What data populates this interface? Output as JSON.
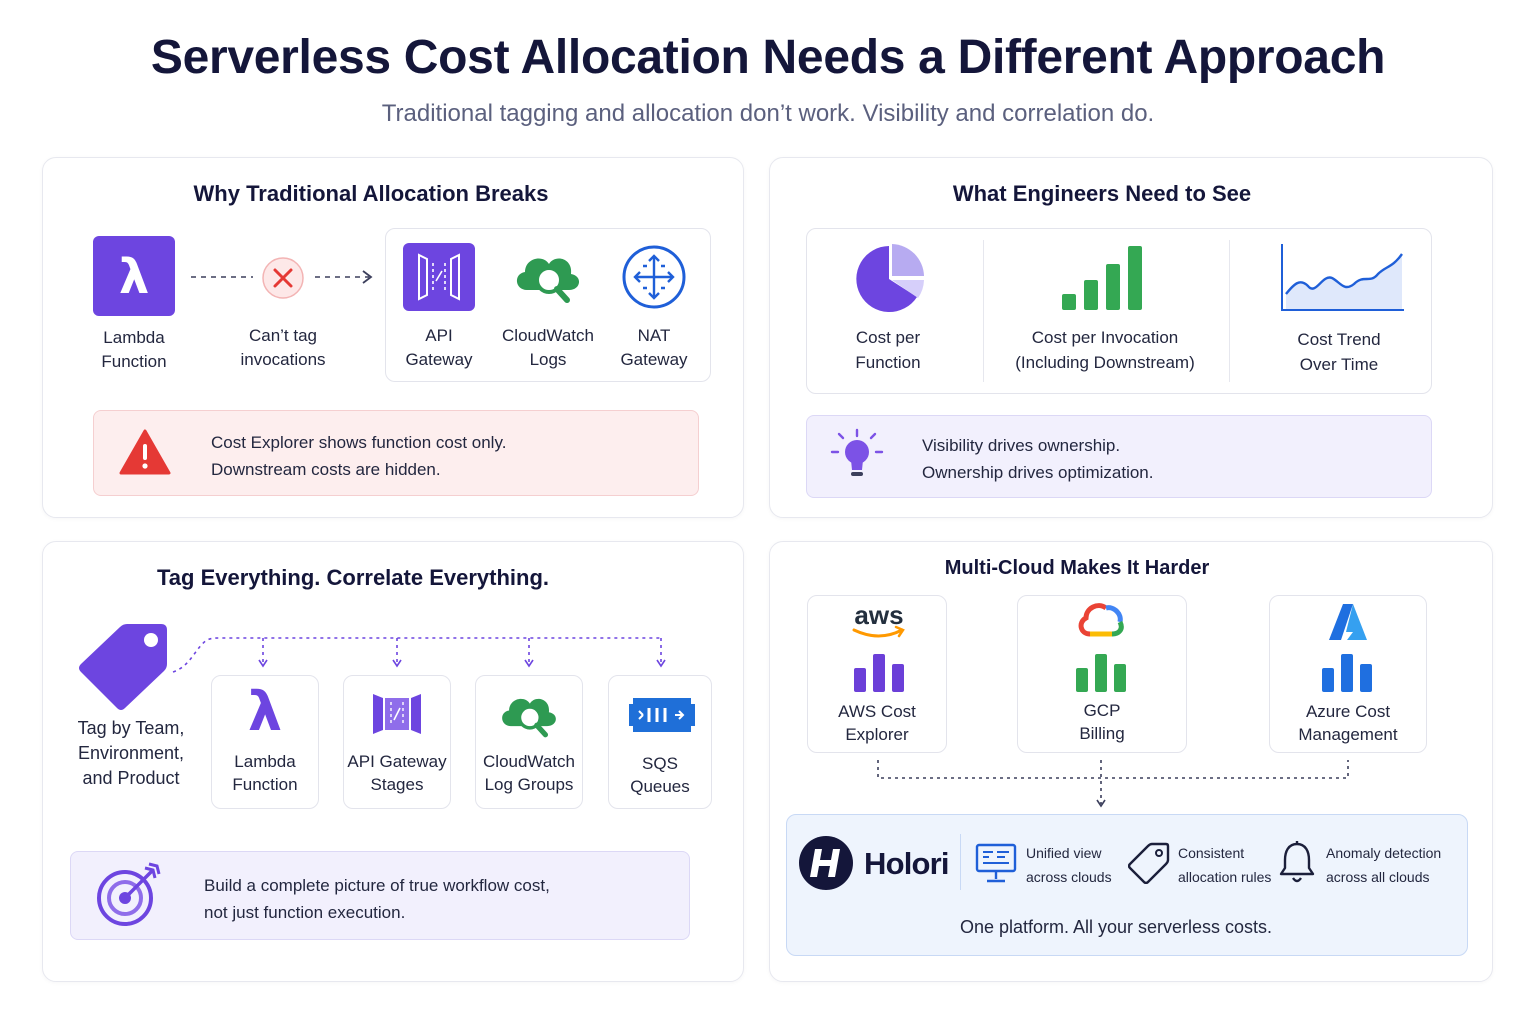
{
  "header": {
    "title": "Serverless Cost Allocation Needs a Different Approach",
    "subtitle": "Traditional tagging and allocation don’t work. Visibility and correlation do."
  },
  "panel_breaks": {
    "title": "Why Traditional Allocation Breaks",
    "lambda": [
      "Lambda",
      "Function"
    ],
    "cant_tag": [
      "Can’t tag",
      "invocations"
    ],
    "services": [
      {
        "icon": "api-gateway-icon",
        "lines": [
          "API",
          "Gateway"
        ]
      },
      {
        "icon": "cloudwatch-icon",
        "lines": [
          "CloudWatch",
          "Logs"
        ]
      },
      {
        "icon": "nat-gateway-icon",
        "lines": [
          "NAT",
          "Gateway"
        ]
      }
    ],
    "alert": [
      "Cost Explorer shows function cost only.",
      "Downstream costs are hidden."
    ]
  },
  "panel_see": {
    "title": "What Engineers Need to See",
    "items": [
      {
        "icon": "pie-chart-icon",
        "lines": [
          "Cost per",
          "Function"
        ]
      },
      {
        "icon": "bar-chart-icon",
        "lines": [
          "Cost per Invocation",
          "(Including Downstream)"
        ]
      },
      {
        "icon": "trend-chart-icon",
        "lines": [
          "Cost Trend",
          "Over Time"
        ]
      }
    ],
    "alert": [
      "Visibility drives ownership.",
      "Ownership drives optimization."
    ]
  },
  "panel_tag": {
    "title": "Tag Everything. Correlate Everything.",
    "tag_label": [
      "Tag by Team,",
      "Environment,",
      "and Product"
    ],
    "items": [
      {
        "icon": "lambda-icon",
        "lines": [
          "Lambda",
          "Function"
        ]
      },
      {
        "icon": "api-gateway-icon",
        "lines": [
          "API Gateway",
          "Stages"
        ]
      },
      {
        "icon": "cloudwatch-icon",
        "lines": [
          "CloudWatch",
          "Log Groups"
        ]
      },
      {
        "icon": "sqs-icon",
        "lines": [
          "SQS",
          "Queues"
        ]
      }
    ],
    "alert": [
      "Build a complete picture of true workflow cost,",
      "not just function execution."
    ]
  },
  "panel_multi": {
    "title": "Multi-Cloud Makes It Harder",
    "clouds": [
      {
        "logo": "aws",
        "lines": [
          "AWS Cost",
          "Explorer"
        ],
        "color": "#6b3fd8"
      },
      {
        "logo": "gcp",
        "lines": [
          "GCP",
          "Billing"
        ],
        "color": "#34a853"
      },
      {
        "logo": "azure",
        "lines": [
          "Azure Cost",
          "Management"
        ],
        "color": "#1f6fe0"
      }
    ],
    "holori": {
      "brand": "Holori",
      "features": [
        {
          "icon": "monitor-icon",
          "lines": [
            "Unified view",
            "across clouds"
          ]
        },
        {
          "icon": "tag-icon",
          "lines": [
            "Consistent",
            "allocation rules"
          ]
        },
        {
          "icon": "bell-icon",
          "lines": [
            "Anomaly detection",
            "across all clouds"
          ]
        }
      ],
      "tagline": "One platform. All your serverless costs."
    }
  },
  "colors": {
    "purple": "#6d45e0",
    "green": "#34a853",
    "blue": "#1f6fe0",
    "red": "#e53935",
    "navy": "#14163a"
  }
}
